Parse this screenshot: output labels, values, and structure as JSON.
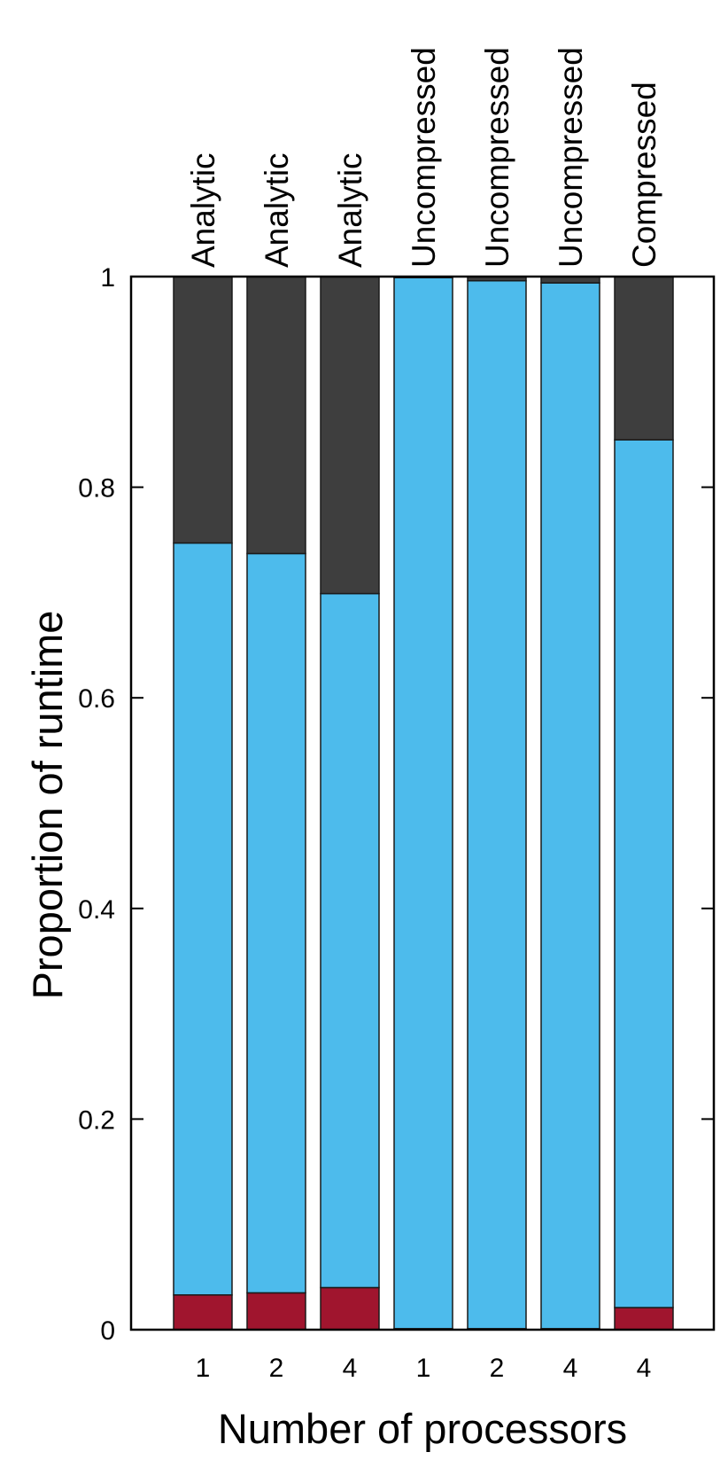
{
  "chart_data": {
    "type": "bar",
    "stacked": true,
    "title": "",
    "xlabel": "Number of processors",
    "ylabel": "Proportion of runtime",
    "ylim": [
      0,
      1
    ],
    "yticks": [
      "0",
      "0.2",
      "0.4",
      "0.6",
      "0.8",
      "1"
    ],
    "grid": false,
    "legend": "none",
    "categories": [
      "1",
      "2",
      "4",
      "1",
      "2",
      "4",
      "4"
    ],
    "group_labels": [
      "Analytic",
      "Analytic",
      "Analytic",
      "Uncompressed",
      "Uncompressed",
      "Uncompressed",
      "Compressed"
    ],
    "series": [
      {
        "color": "#a0152e",
        "values": [
          0.033,
          0.035,
          0.04,
          0.001,
          0.001,
          0.001,
          0.021
        ]
      },
      {
        "color": "#4dbbec",
        "values": [
          0.714,
          0.702,
          0.659,
          0.998,
          0.995,
          0.993,
          0.824
        ]
      },
      {
        "color": "#3e3e3e",
        "values": [
          0.253,
          0.263,
          0.301,
          0.001,
          0.004,
          0.006,
          0.155
        ]
      }
    ]
  }
}
